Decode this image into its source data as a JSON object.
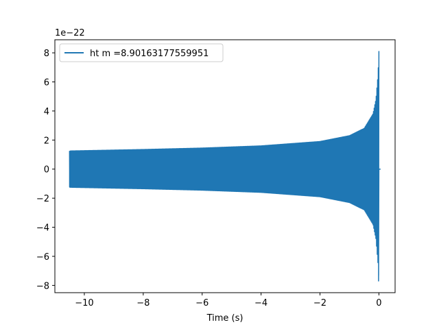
{
  "chart_data": {
    "type": "line",
    "title": "",
    "xlabel": "Time (s)",
    "ylabel": "",
    "y_offset_label": "1e−22",
    "xlim": [
      -11.0,
      0.55
    ],
    "ylim": [
      -8.5,
      8.9
    ],
    "grid": false,
    "legend": "top-left",
    "x_ticks": [
      {
        "value": -10,
        "label": "−10"
      },
      {
        "value": -8,
        "label": "−8"
      },
      {
        "value": -6,
        "label": "−6"
      },
      {
        "value": -4,
        "label": "−4"
      },
      {
        "value": -2,
        "label": "−2"
      },
      {
        "value": 0,
        "label": "0"
      }
    ],
    "y_ticks": [
      {
        "value": -8,
        "label": "−8"
      },
      {
        "value": -6,
        "label": "−6"
      },
      {
        "value": -4,
        "label": "−4"
      },
      {
        "value": -2,
        "label": "−2"
      },
      {
        "value": 0,
        "label": "0"
      },
      {
        "value": 2,
        "label": "2"
      },
      {
        "value": 4,
        "label": "4"
      },
      {
        "value": 6,
        "label": "6"
      },
      {
        "value": 8,
        "label": "8"
      }
    ],
    "series": [
      {
        "name": "ht m =8.90163177559951",
        "color": "#1f77b4",
        "t_start": -10.5,
        "t_merger": 0.0,
        "upper_envelope": {
          "x": [
            -10.5,
            -8,
            -6,
            -4,
            -2,
            -1,
            -0.5,
            -0.2,
            -0.1,
            -0.03,
            0.0
          ],
          "y": [
            1.25,
            1.35,
            1.45,
            1.6,
            1.9,
            2.3,
            2.8,
            3.8,
            4.8,
            6.5,
            8.1
          ]
        },
        "lower_envelope": {
          "x": [
            -10.5,
            -8,
            -6,
            -4,
            -2,
            -1,
            -0.5,
            -0.2,
            -0.1,
            -0.03,
            0.0
          ],
          "y": [
            -1.25,
            -1.35,
            -1.45,
            -1.6,
            -1.9,
            -2.3,
            -2.8,
            -3.8,
            -4.8,
            -6.5,
            -7.7
          ]
        },
        "ringdown_value": 0.0
      }
    ]
  }
}
